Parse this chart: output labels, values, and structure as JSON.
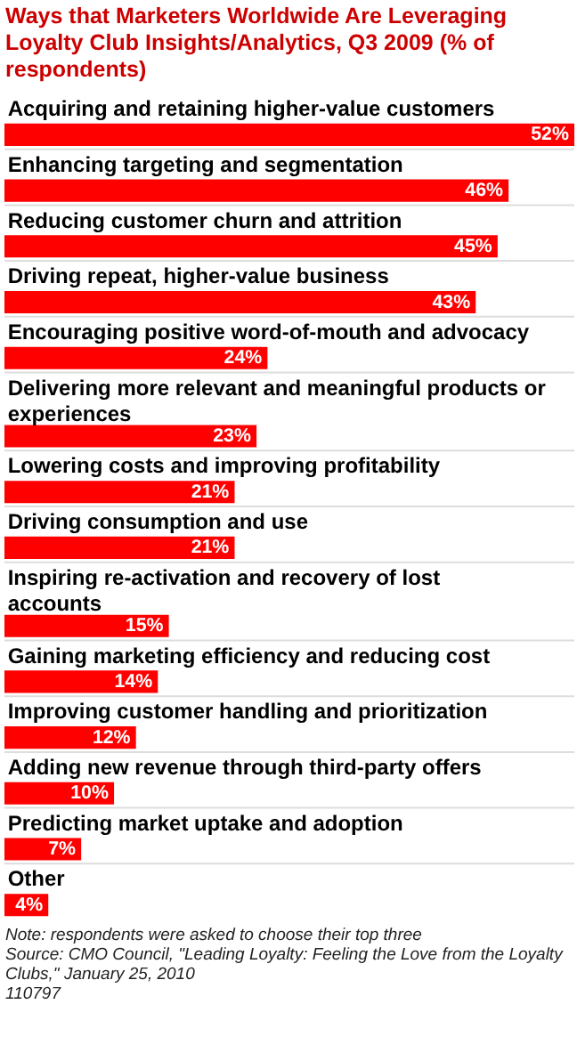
{
  "chart_data": {
    "type": "bar",
    "orientation": "horizontal",
    "title": "Ways that Marketers Worldwide Are Leveraging Loyalty Club Insights/Analytics, Q3 2009 (% of respondents)",
    "categories": [
      "Acquiring and retaining higher-value customers",
      "Enhancing targeting and segmentation",
      "Reducing customer churn and attrition",
      "Driving repeat, higher-value business",
      "Encouraging positive word-of-mouth and advocacy",
      "Delivering more relevant and meaningful products or experiences",
      "Lowering costs and improving profitability",
      "Driving consumption and use",
      "Inspiring re-activation and recovery of lost accounts",
      "Gaining marketing efficiency and reducing cost",
      "Improving customer handling and prioritization",
      "Adding new revenue through third-party offers",
      "Predicting market uptake and adoption",
      "Other"
    ],
    "values": [
      52,
      46,
      45,
      43,
      24,
      23,
      21,
      21,
      15,
      14,
      12,
      10,
      7,
      4
    ],
    "value_labels": [
      "52%",
      "46%",
      "45%",
      "43%",
      "24%",
      "23%",
      "21%",
      "21%",
      "15%",
      "14%",
      "12%",
      "10%",
      "7%",
      "4%"
    ],
    "color": "#ff0000",
    "annotations": [
      "Note: respondents were asked to choose their top three",
      "Source: CMO Council, \"Leading Loyalty: Feeling the Love from the Loyalty Clubs,\" January 25, 2010",
      "110797"
    ]
  }
}
